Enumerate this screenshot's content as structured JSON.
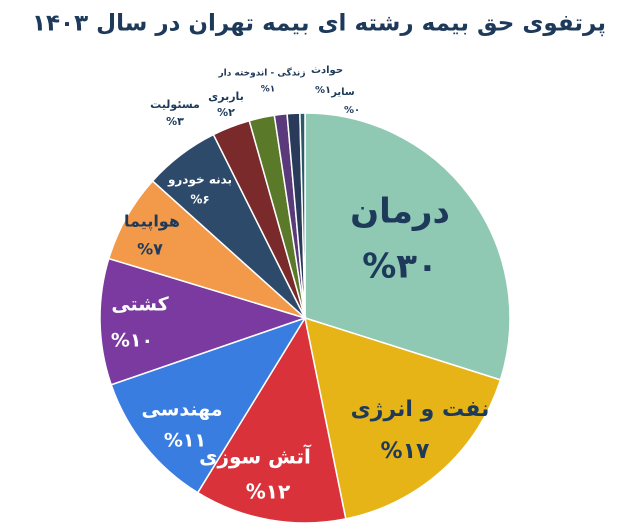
{
  "chart_data": {
    "type": "pie",
    "title": "پرتفوی حق بیمه رشته ای بیمه تهران در سال ۱۴۰۳",
    "categories": [
      "درمان",
      "نفت و انرژی",
      "آتش سوزی",
      "مهندسی",
      "کشتی",
      "هواپیما",
      "بدنه خودرو",
      "مسئولیت",
      "باربری",
      "زندگی - اندوخته دار",
      "حوادث",
      "سایر"
    ],
    "values": [
      30,
      17,
      12,
      11,
      10,
      7,
      6,
      3,
      2,
      1,
      1,
      0.4
    ],
    "value_labels": [
      "%۳۰",
      "%۱۷",
      "%۱۲",
      "%۱۱",
      "%۱۰",
      "%۷",
      "%۶",
      "%۳",
      "%۲",
      "%۱",
      "%۱",
      "%۰"
    ],
    "colors": [
      "#8fc9b4",
      "#e6b417",
      "#d9323a",
      "#3a7de0",
      "#7a3aa0",
      "#f29a4a",
      "#2e4a6b",
      "#7a2a2a",
      "#5a7a2a",
      "#5a3a7a",
      "#2a3a5a",
      "#2a5a6a"
    ]
  }
}
